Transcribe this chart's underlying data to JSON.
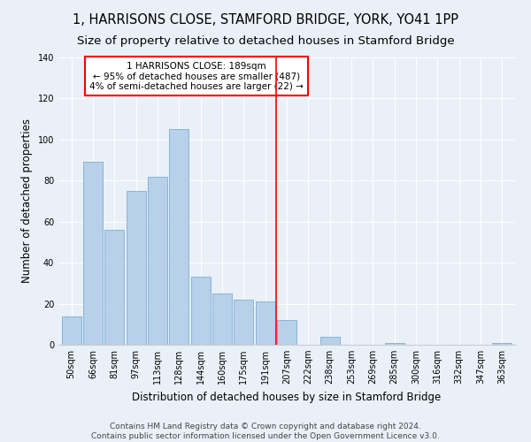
{
  "title": "1, HARRISONS CLOSE, STAMFORD BRIDGE, YORK, YO41 1PP",
  "subtitle": "Size of property relative to detached houses in Stamford Bridge",
  "xlabel": "Distribution of detached houses by size in Stamford Bridge",
  "ylabel": "Number of detached properties",
  "categories": [
    "50sqm",
    "66sqm",
    "81sqm",
    "97sqm",
    "113sqm",
    "128sqm",
    "144sqm",
    "160sqm",
    "175sqm",
    "191sqm",
    "207sqm",
    "222sqm",
    "238sqm",
    "253sqm",
    "269sqm",
    "285sqm",
    "300sqm",
    "316sqm",
    "332sqm",
    "347sqm",
    "363sqm"
  ],
  "values": [
    14,
    89,
    56,
    75,
    82,
    105,
    33,
    25,
    22,
    21,
    12,
    0,
    4,
    0,
    0,
    1,
    0,
    0,
    0,
    0,
    1
  ],
  "bar_color": "#b8d0ea",
  "bar_edge_color": "#7aafd4",
  "vline_x_index": 9.5,
  "vline_color": "red",
  "annotation_text": "1 HARRISONS CLOSE: 189sqm\n← 95% of detached houses are smaller (487)\n4% of semi-detached houses are larger (22) →",
  "annotation_box_color": "white",
  "annotation_box_edge_color": "red",
  "ylim": [
    0,
    140
  ],
  "yticks": [
    0,
    20,
    40,
    60,
    80,
    100,
    120,
    140
  ],
  "bg_color": "#eaf0f8",
  "footer_text": "Contains HM Land Registry data © Crown copyright and database right 2024.\nContains public sector information licensed under the Open Government Licence v3.0.",
  "title_fontsize": 10.5,
  "subtitle_fontsize": 9.5,
  "xlabel_fontsize": 8.5,
  "ylabel_fontsize": 8.5,
  "tick_fontsize": 7,
  "footer_fontsize": 6.5,
  "annot_fontsize": 7.5
}
